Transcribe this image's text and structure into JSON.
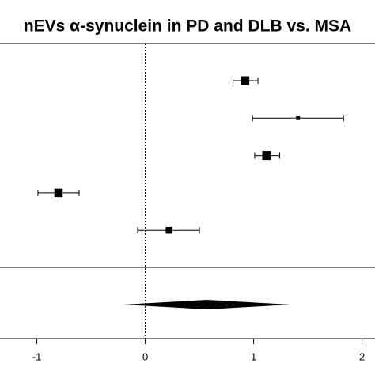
{
  "chart_data": {
    "type": "forest",
    "title": "nEVs α-synuclein in PD and DLB vs. MSA",
    "estimates": [
      0.92,
      1.41,
      1.12,
      -0.8,
      0.22
    ],
    "lower": [
      0.81,
      0.99,
      1.01,
      -0.99,
      -0.07
    ],
    "upper": [
      1.04,
      1.83,
      1.24,
      -0.61,
      0.5
    ],
    "weights": [
      20,
      4,
      20,
      18,
      12
    ],
    "summary": {
      "estimate": 0.57,
      "lower": -0.2,
      "upper": 1.34
    },
    "xlim": [
      -1.34,
      2.12
    ],
    "xticks": [
      -1,
      0,
      1,
      2
    ],
    "color": "#000000"
  }
}
